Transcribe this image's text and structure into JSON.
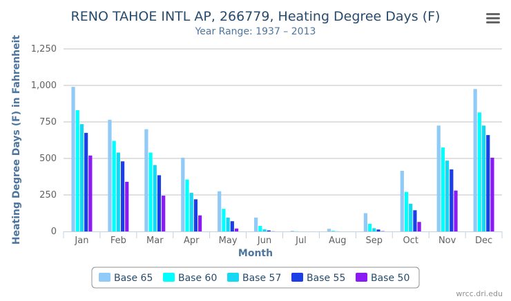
{
  "chart_data": {
    "type": "bar",
    "title": "RENO TAHOE INTL AP, 266779, Heating Degree Days (F)",
    "subtitle": "Year Range: 1937 – 2013",
    "xlabel": "Month",
    "ylabel": "Heating Degree Days (F) in Fahrenheit",
    "categories": [
      "Jan",
      "Feb",
      "Mar",
      "Apr",
      "May",
      "Jun",
      "Jul",
      "Aug",
      "Sep",
      "Oct",
      "Nov",
      "Dec"
    ],
    "ylim": [
      0,
      1250
    ],
    "yticks": [
      "0",
      "250",
      "500",
      "750",
      "1,000",
      "1,250"
    ],
    "grid": true,
    "legend_position": "bottom-center",
    "series": [
      {
        "name": "Base 65",
        "color": "#90caf6",
        "values": [
          990,
          765,
          700,
          505,
          275,
          95,
          4,
          18,
          125,
          415,
          725,
          975
        ]
      },
      {
        "name": "Base 60",
        "color": "#00ffff",
        "values": [
          830,
          620,
          540,
          355,
          155,
          38,
          1,
          4,
          52,
          270,
          575,
          815
        ]
      },
      {
        "name": "Base 57",
        "color": "#17d8f2",
        "values": [
          735,
          540,
          455,
          265,
          95,
          14,
          0,
          1,
          22,
          190,
          485,
          725
        ]
      },
      {
        "name": "Base 55",
        "color": "#1b3ee6",
        "values": [
          675,
          480,
          385,
          220,
          70,
          7,
          0,
          0,
          13,
          145,
          425,
          660
        ]
      },
      {
        "name": "Base 50",
        "color": "#8a1bf2",
        "values": [
          520,
          340,
          245,
          110,
          20,
          1,
          0,
          0,
          2,
          65,
          280,
          505
        ]
      }
    ]
  },
  "menu": {
    "icon": "hamburger-menu-icon"
  },
  "credit": "wrcc.dri.edu"
}
